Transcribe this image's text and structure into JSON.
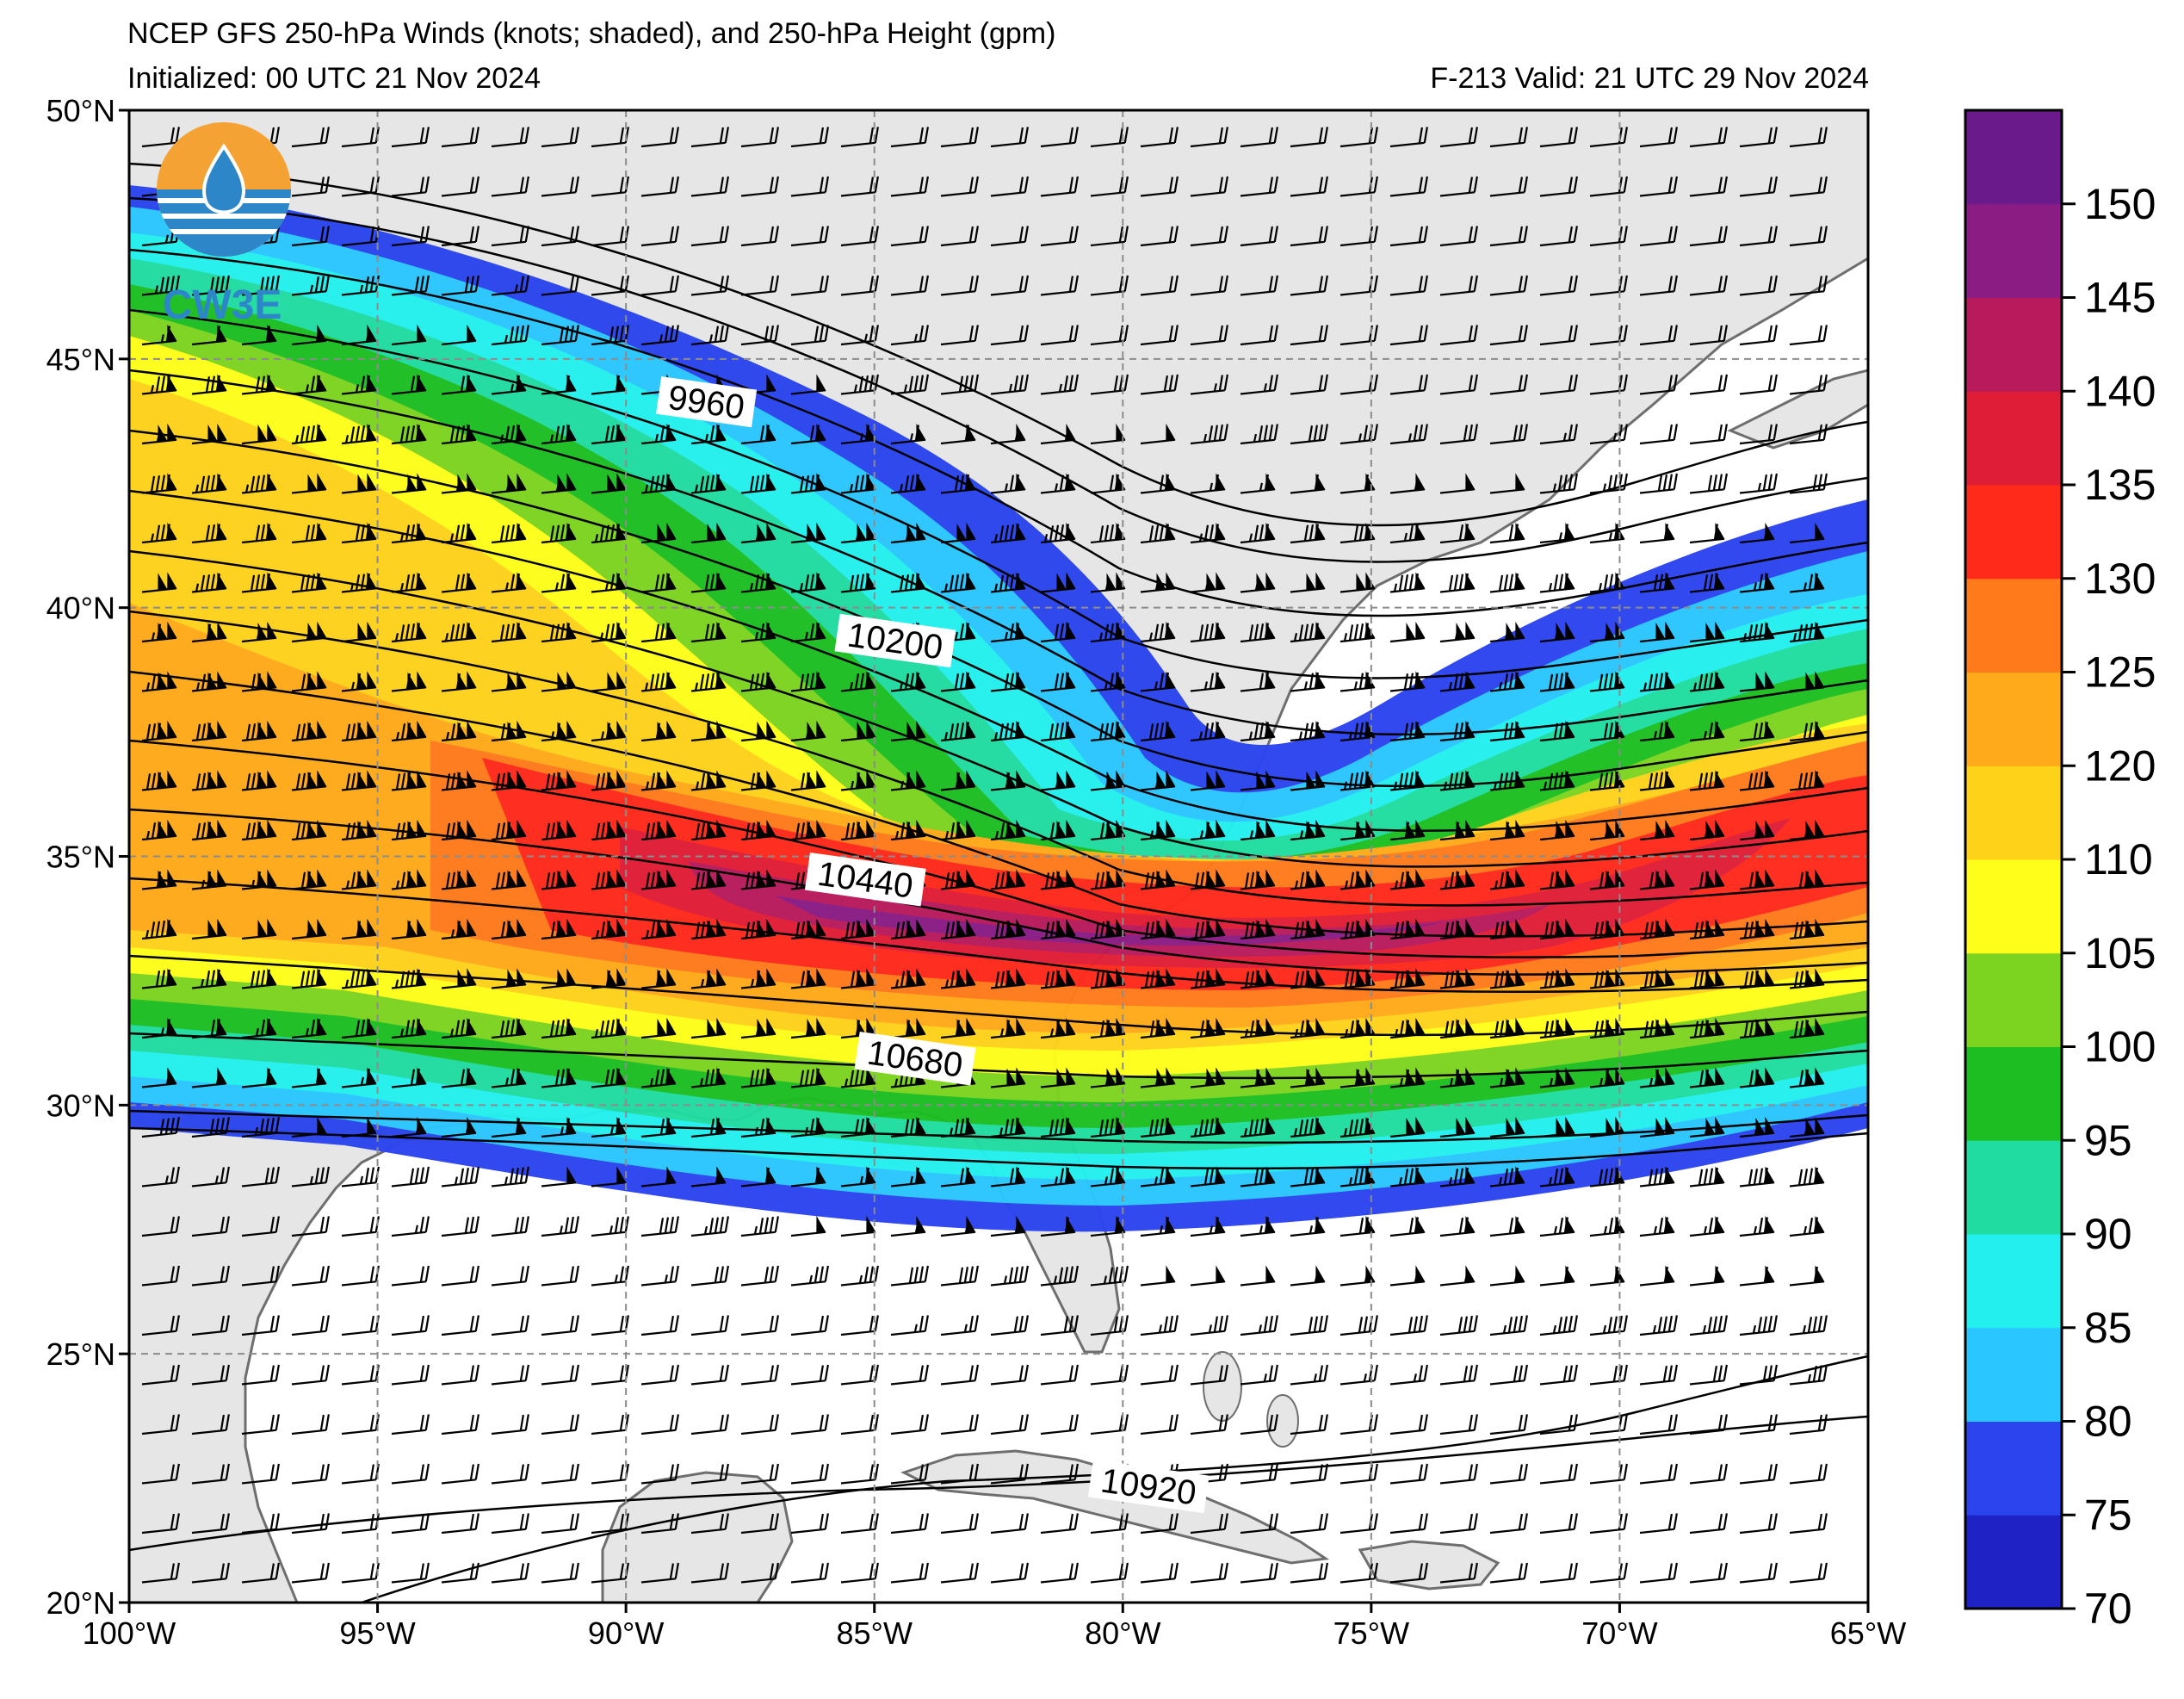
{
  "header": {
    "title": "NCEP GFS 250-hPa Winds (knots; shaded), and 250-hPa Height (gpm)",
    "initialized": "Initialized: 00 UTC 21 Nov 2024",
    "valid": "F-213  Valid: 21 UTC 29 Nov 2024"
  },
  "logo": {
    "text": "CW3E"
  },
  "map": {
    "lon_range": [
      -100,
      -65
    ],
    "lat_range": [
      20,
      50
    ],
    "lon_ticks": [
      {
        "value": -100,
        "label": "100°W"
      },
      {
        "value": -95,
        "label": "95°W"
      },
      {
        "value": -90,
        "label": "90°W"
      },
      {
        "value": -85,
        "label": "85°W"
      },
      {
        "value": -80,
        "label": "80°W"
      },
      {
        "value": -75,
        "label": "75°W"
      },
      {
        "value": -70,
        "label": "70°W"
      },
      {
        "value": -65,
        "label": "65°W"
      }
    ],
    "lat_ticks": [
      {
        "value": 20,
        "label": "20°N"
      },
      {
        "value": 25,
        "label": "25°N"
      },
      {
        "value": 30,
        "label": "30°N"
      },
      {
        "value": 35,
        "label": "35°N"
      },
      {
        "value": 40,
        "label": "40°N"
      },
      {
        "value": 45,
        "label": "45°N"
      },
      {
        "value": 50,
        "label": "50°N"
      }
    ],
    "contour_labels": [
      {
        "value": "9960",
        "lon": -88.4,
        "lat": 44.0
      },
      {
        "value": "10200",
        "lon": -84.6,
        "lat": 39.2
      },
      {
        "value": "10440",
        "lon": -85.2,
        "lat": 34.4
      },
      {
        "value": "10680",
        "lon": -84.2,
        "lat": 30.8
      },
      {
        "value": "10920",
        "lon": -79.5,
        "lat": 22.2
      }
    ]
  },
  "colorbar": {
    "bounds": [
      70,
      75,
      80,
      85,
      90,
      95,
      100,
      105,
      110,
      120,
      125,
      130,
      135,
      140,
      145,
      150,
      155
    ],
    "colors": [
      "#1f22c4",
      "#2b44ee",
      "#2ac6ff",
      "#23f0ee",
      "#20dca0",
      "#1cbe22",
      "#7dd420",
      "#fffe1a",
      "#ffd21a",
      "#ffaa1a",
      "#ff7a1a",
      "#ff2a1a",
      "#e01d36",
      "#b81a5c",
      "#8a1c84",
      "#6a1a8a"
    ],
    "labels": [
      {
        "value": 70,
        "label": "70"
      },
      {
        "value": 75,
        "label": "75"
      },
      {
        "value": 80,
        "label": "80"
      },
      {
        "value": 85,
        "label": "85"
      },
      {
        "value": 90,
        "label": "90"
      },
      {
        "value": 95,
        "label": "95"
      },
      {
        "value": 100,
        "label": "100"
      },
      {
        "value": 105,
        "label": "105"
      },
      {
        "value": 110,
        "label": "110"
      },
      {
        "value": 120,
        "label": "120"
      },
      {
        "value": 125,
        "label": "125"
      },
      {
        "value": 130,
        "label": "130"
      },
      {
        "value": 135,
        "label": "135"
      },
      {
        "value": 140,
        "label": "140"
      },
      {
        "value": 145,
        "label": "145"
      },
      {
        "value": 150,
        "label": "150"
      }
    ]
  },
  "colors": {
    "land": "#e6e6e6",
    "ocean": "#ffffff",
    "coast": "#6e6e6e",
    "contour": "#000000",
    "grid": "#8c8c8c"
  }
}
